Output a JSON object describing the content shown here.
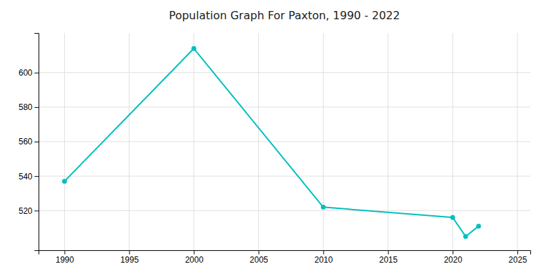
{
  "chart_data": {
    "type": "line",
    "title": "Population Graph For Paxton, 1990 - 2022",
    "x": [
      1990,
      2000,
      2010,
      2020,
      2021,
      2022
    ],
    "values": [
      537,
      614,
      522,
      516,
      505,
      511
    ],
    "color": "#00BFBF",
    "marker": "circle",
    "xlim": [
      1988,
      2026
    ],
    "ylim": [
      497,
      623
    ],
    "xticks": [
      1990,
      1995,
      2000,
      2005,
      2010,
      2015,
      2020,
      2025
    ],
    "yticks": [
      520,
      540,
      560,
      580,
      600
    ],
    "grid": true
  }
}
